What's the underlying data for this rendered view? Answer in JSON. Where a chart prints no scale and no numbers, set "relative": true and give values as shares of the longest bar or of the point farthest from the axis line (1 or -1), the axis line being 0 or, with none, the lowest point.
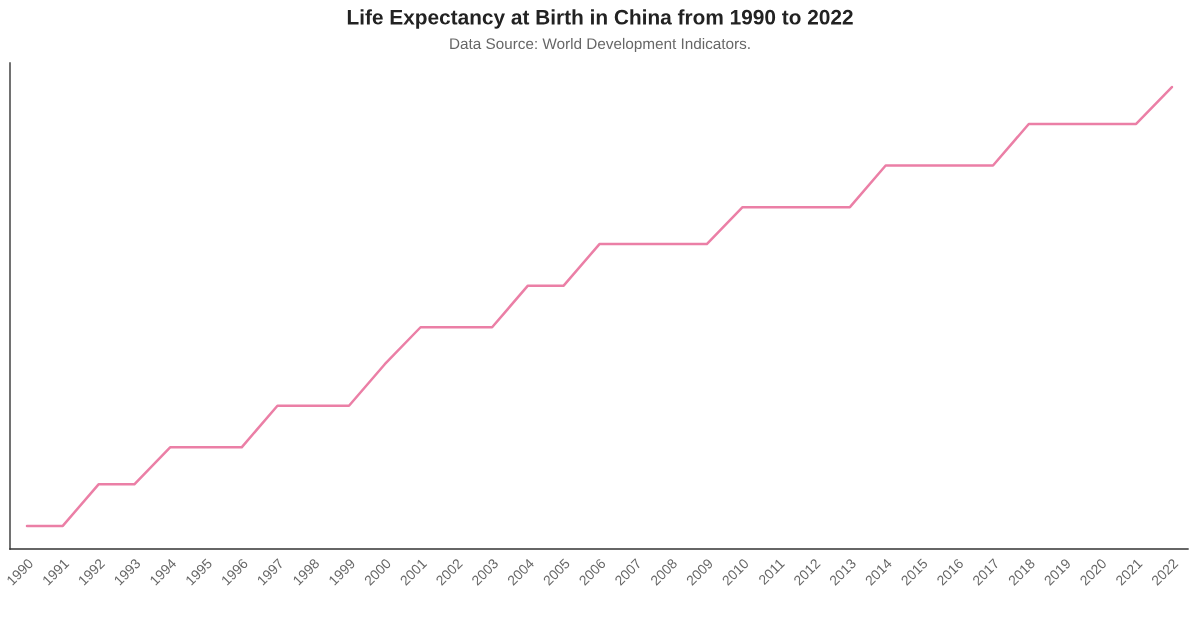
{
  "chart_data": {
    "type": "line",
    "title": "Life Expectancy at Birth in China from 1990 to 2022",
    "subtitle": "Data Source: World Development Indicators.",
    "relative": true,
    "categories": [
      "1990",
      "1991",
      "1992",
      "1993",
      "1994",
      "1995",
      "1996",
      "1997",
      "1998",
      "1999",
      "2000",
      "2001",
      "2002",
      "2003",
      "2004",
      "2005",
      "2006",
      "2007",
      "2008",
      "2009",
      "2010",
      "2011",
      "2012",
      "2013",
      "2014",
      "2015",
      "2016",
      "2017",
      "2018",
      "2019",
      "2020",
      "2021",
      "2022"
    ],
    "values": [
      0.05,
      0.05,
      0.14,
      0.14,
      0.22,
      0.22,
      0.22,
      0.31,
      0.31,
      0.31,
      0.4,
      0.48,
      0.48,
      0.48,
      0.57,
      0.57,
      0.66,
      0.66,
      0.66,
      0.66,
      0.74,
      0.74,
      0.74,
      0.74,
      0.83,
      0.83,
      0.83,
      0.83,
      0.92,
      0.92,
      0.92,
      0.92,
      1
    ],
    "color": "#eb7fa6"
  }
}
